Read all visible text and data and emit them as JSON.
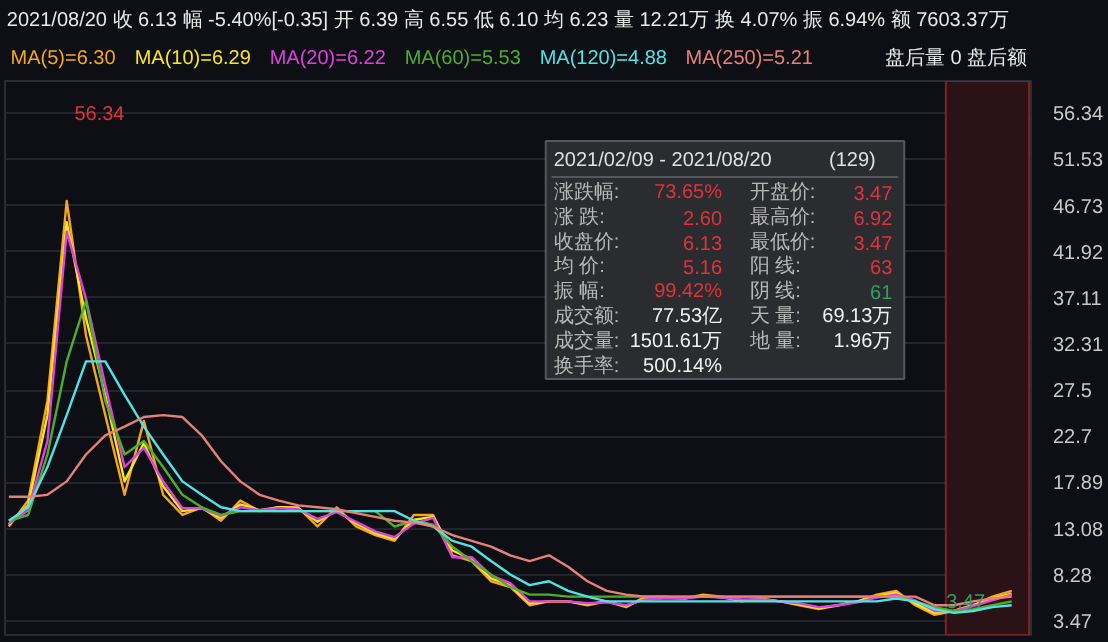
{
  "chart_data": {
    "type": "line",
    "title": "2021/08/20 收 6.13 幅 -5.40%[-0.35] 开 6.39 高 6.55 低 6.10 均 6.23 量 12.21万 换 4.07% 振 6.94% 额 7603.37万",
    "categories": [
      null,
      null,
      null,
      null,
      null,
      null,
      null,
      null,
      null,
      null,
      null,
      null,
      null,
      null,
      null,
      null,
      null,
      null,
      null,
      null,
      null,
      null,
      null,
      null,
      null,
      null,
      null,
      null,
      null,
      null,
      null,
      null,
      null,
      null,
      null,
      null,
      null,
      null,
      null,
      null,
      null,
      null,
      null,
      null,
      null,
      null,
      null,
      null,
      null,
      null,
      null,
      null,
      null
    ],
    "series": [
      {
        "name": "MA(5)=6.30",
        "color": "#f5a623",
        "values": [
          13.3,
          16.0,
          26.4,
          47.2,
          33.2,
          24.9,
          16.6,
          24.3,
          16.6,
          14.5,
          15.3,
          13.9,
          16.0,
          14.9,
          15.3,
          15.3,
          13.3,
          15.3,
          13.3,
          12.4,
          11.8,
          14.5,
          14.5,
          10.3,
          9.7,
          7.6,
          7.0,
          5.1,
          5.5,
          5.5,
          5.1,
          5.5,
          4.9,
          6.0,
          6.0,
          5.8,
          6.2,
          6.0,
          5.5,
          5.8,
          5.5,
          5.1,
          4.7,
          5.1,
          5.5,
          6.2,
          6.6,
          5.1,
          4.1,
          4.5,
          5.1,
          6.0,
          6.6
        ]
      },
      {
        "name": "MA(10)=6.29",
        "color": "#f8e71c",
        "values": [
          13.5,
          15.5,
          24.9,
          45.0,
          35.0,
          27.0,
          18.0,
          22.0,
          17.5,
          14.9,
          15.2,
          14.2,
          15.6,
          15.0,
          15.3,
          15.2,
          13.8,
          15.0,
          13.6,
          12.6,
          12.0,
          14.0,
          14.3,
          10.8,
          9.9,
          7.9,
          7.2,
          5.3,
          5.5,
          5.5,
          5.2,
          5.5,
          5.0,
          5.8,
          5.9,
          5.8,
          6.1,
          5.9,
          5.6,
          5.7,
          5.5,
          5.2,
          4.8,
          5.1,
          5.5,
          6.0,
          6.4,
          5.3,
          4.3,
          4.5,
          5.1,
          5.8,
          6.3
        ]
      },
      {
        "name": "MA(20)=6.22",
        "color": "#e040e0",
        "values": [
          13.6,
          15.0,
          22.2,
          44.0,
          37.0,
          28.0,
          19.5,
          21.5,
          18.0,
          15.2,
          15.2,
          14.4,
          15.3,
          15.0,
          15.2,
          15.1,
          14.1,
          14.8,
          13.8,
          12.8,
          12.2,
          13.6,
          14.2,
          10.1,
          10.1,
          8.2,
          7.4,
          5.5,
          5.5,
          5.5,
          5.3,
          5.4,
          5.1,
          5.7,
          5.8,
          5.8,
          6.0,
          5.9,
          5.7,
          5.7,
          5.5,
          5.3,
          4.9,
          5.1,
          5.4,
          5.9,
          6.2,
          5.6,
          4.5,
          4.5,
          5.0,
          5.6,
          6.2
        ]
      },
      {
        "name": "MA(60)=5.53",
        "color": "#4caf2a",
        "values": [
          13.9,
          14.5,
          20.8,
          30.5,
          36.8,
          26.4,
          20.8,
          22.2,
          19.5,
          16.6,
          15.3,
          14.5,
          14.9,
          14.9,
          14.9,
          14.9,
          14.9,
          14.9,
          14.9,
          14.9,
          13.3,
          13.9,
          13.5,
          11.2,
          9.7,
          8.3,
          7.0,
          6.2,
          6.2,
          6.0,
          6.0,
          6.0,
          6.0,
          6.0,
          6.0,
          6.0,
          6.0,
          6.0,
          6.0,
          6.0,
          6.0,
          6.0,
          6.0,
          6.0,
          6.0,
          6.0,
          6.0,
          5.5,
          4.9,
          4.5,
          4.7,
          5.1,
          5.5
        ]
      },
      {
        "name": "MA(120)=4.88",
        "color": "#50e3e6",
        "values": [
          13.9,
          15.3,
          19.5,
          24.9,
          30.5,
          30.5,
          27.0,
          23.7,
          20.8,
          18.0,
          16.6,
          15.3,
          14.9,
          14.9,
          14.9,
          14.9,
          14.9,
          14.9,
          14.9,
          14.9,
          14.9,
          13.9,
          13.3,
          11.8,
          11.2,
          9.7,
          8.3,
          7.2,
          7.6,
          6.6,
          6.0,
          5.5,
          5.5,
          5.5,
          5.5,
          5.5,
          5.5,
          5.5,
          5.5,
          5.5,
          5.5,
          5.5,
          5.5,
          5.5,
          5.5,
          5.5,
          5.8,
          5.5,
          4.7,
          4.3,
          4.5,
          4.9,
          5.1
        ]
      },
      {
        "name": "MA(250)=5.21",
        "color": "#e8807a",
        "values": [
          16.4,
          16.4,
          16.6,
          18.0,
          20.8,
          22.8,
          23.7,
          24.7,
          24.9,
          24.7,
          22.8,
          20.1,
          18.0,
          16.6,
          16.0,
          15.5,
          15.3,
          15.1,
          14.7,
          14.3,
          13.9,
          13.7,
          13.3,
          12.4,
          11.8,
          11.2,
          10.3,
          9.7,
          10.3,
          9.1,
          7.6,
          6.6,
          6.2,
          6.0,
          6.0,
          6.0,
          6.0,
          6.0,
          6.0,
          6.0,
          6.0,
          6.0,
          6.0,
          6.0,
          6.0,
          6.0,
          6.0,
          6.0,
          5.1,
          5.1,
          5.5,
          5.8,
          6.0
        ]
      }
    ],
    "ylim": [
      2.0,
      59.7
    ],
    "yticks": [
      3.47,
      8.28,
      13.08,
      17.89,
      22.7,
      27.5,
      32.31,
      37.11,
      41.92,
      46.73,
      51.53,
      56.34
    ],
    "grid": "y",
    "legend": "top left",
    "annotations": [
      "56.34",
      "3.47",
      "盘后量 0 盘后额",
      "2021/02/09 - 2021/08/20",
      "(129)",
      "涨跌幅:",
      "73.65%",
      "开盘价:",
      "3.47",
      "涨 跌:",
      "2.60",
      "最高价:",
      "6.92",
      "收盘价:",
      "6.13",
      "最低价:",
      "3.47",
      "均 价:",
      "5.16",
      "阳 线:",
      "63",
      "振 幅:",
      "99.42%",
      "阴 线:",
      "61",
      "成交额:",
      "77.53亿",
      "天 量:",
      "69.13万",
      "成交量:",
      "1501.61万",
      "地 量:",
      "1.96万",
      "换手率:",
      "500.14%"
    ]
  }
}
